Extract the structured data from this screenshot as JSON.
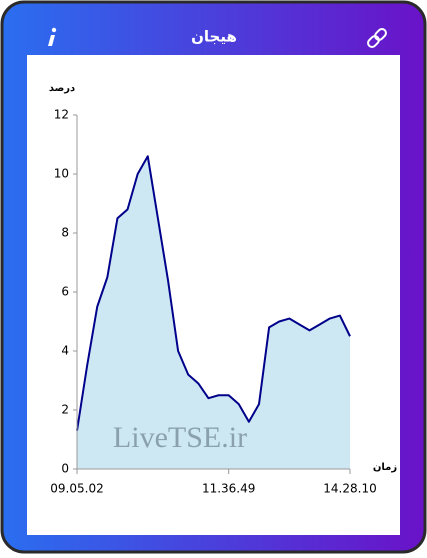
{
  "header": {
    "title": "هیجان"
  },
  "chart_data": {
    "type": "area",
    "y_label": "درصد",
    "x_label": "زمان",
    "annotation": "LiveTSE.ir",
    "values": [
      1.3,
      3.5,
      5.5,
      6.5,
      8.5,
      8.8,
      10.0,
      10.6,
      8.5,
      6.4,
      4.0,
      3.2,
      2.9,
      2.4,
      2.5,
      2.5,
      2.2,
      1.6,
      2.2,
      4.8,
      5.0,
      5.1,
      4.9,
      4.7,
      4.9,
      5.1,
      5.2,
      4.5
    ],
    "color": "#00008b",
    "fill": "#cde8f2",
    "xlim": [
      0,
      27
    ],
    "xticks": [
      {
        "value": 0,
        "label": "09.05.02"
      },
      {
        "value": 15,
        "label": "11.36.49"
      },
      {
        "value": 27,
        "label": "14.28.10"
      }
    ],
    "ylim": [
      0,
      12
    ],
    "yticks": [
      0,
      2,
      4,
      6,
      8,
      10,
      12
    ]
  }
}
